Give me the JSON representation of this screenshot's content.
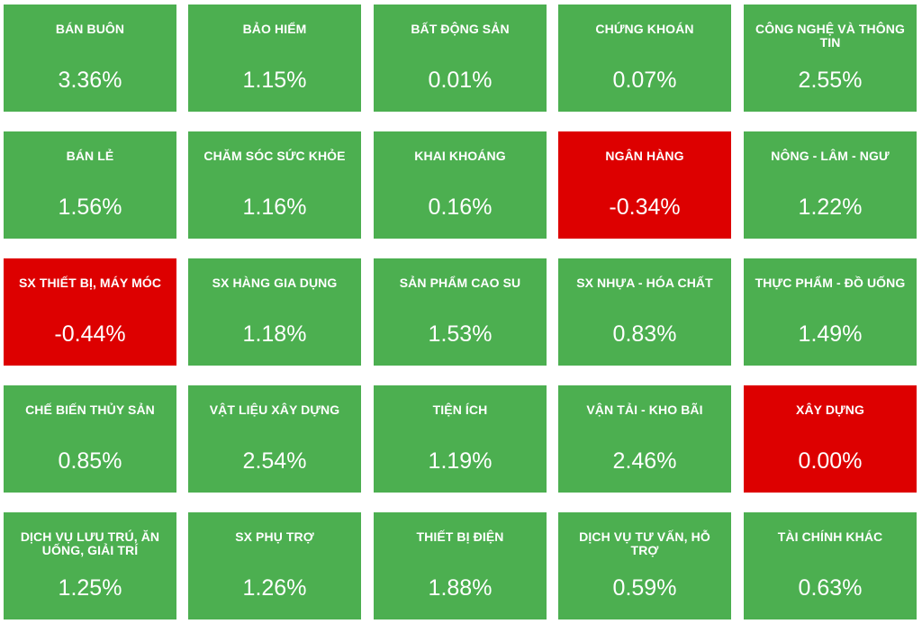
{
  "sectors": [
    {
      "name": "BÁN BUÔN",
      "change": "3.36%",
      "status": "up"
    },
    {
      "name": "BẢO HIỂM",
      "change": "1.15%",
      "status": "up"
    },
    {
      "name": "BẤT ĐỘNG SẢN",
      "change": "0.01%",
      "status": "up"
    },
    {
      "name": "CHỨNG KHOÁN",
      "change": "0.07%",
      "status": "up"
    },
    {
      "name": "CÔNG NGHỆ VÀ THÔNG TIN",
      "change": "2.55%",
      "status": "up"
    },
    {
      "name": "BÁN LẺ",
      "change": "1.56%",
      "status": "up"
    },
    {
      "name": "CHĂM SÓC SỨC KHỎE",
      "change": "1.16%",
      "status": "up"
    },
    {
      "name": "KHAI KHOÁNG",
      "change": "0.16%",
      "status": "up"
    },
    {
      "name": "NGÂN HÀNG",
      "change": "-0.34%",
      "status": "down"
    },
    {
      "name": "NÔNG - LÂM - NGƯ",
      "change": "1.22%",
      "status": "up"
    },
    {
      "name": "SX THIẾT BỊ, MÁY MÓC",
      "change": "-0.44%",
      "status": "down"
    },
    {
      "name": "SX HÀNG GIA DỤNG",
      "change": "1.18%",
      "status": "up"
    },
    {
      "name": "SẢN PHẨM CAO SU",
      "change": "1.53%",
      "status": "up"
    },
    {
      "name": "SX NHỰA - HÓA CHẤT",
      "change": "0.83%",
      "status": "up"
    },
    {
      "name": "THỰC PHẨM - ĐỒ UỐNG",
      "change": "1.49%",
      "status": "up"
    },
    {
      "name": "CHẾ BIẾN THỦY SẢN",
      "change": "0.85%",
      "status": "up"
    },
    {
      "name": "VẬT LIỆU XÂY DỰNG",
      "change": "2.54%",
      "status": "up"
    },
    {
      "name": "TIỆN ÍCH",
      "change": "1.19%",
      "status": "up"
    },
    {
      "name": "VẬN TẢI - KHO BÃI",
      "change": "2.46%",
      "status": "up"
    },
    {
      "name": "XÂY DỰNG",
      "change": "0.00%",
      "status": "down"
    },
    {
      "name": "DỊCH VỤ LƯU TRÚ, ĂN UỐNG, GIẢI TRÍ",
      "change": "1.25%",
      "status": "up"
    },
    {
      "name": "SX PHỤ TRỢ",
      "change": "1.26%",
      "status": "up"
    },
    {
      "name": "THIẾT BỊ ĐIỆN",
      "change": "1.88%",
      "status": "up"
    },
    {
      "name": "DỊCH VỤ TƯ VẤN, HỖ TRỢ",
      "change": "0.59%",
      "status": "up"
    },
    {
      "name": "TÀI CHÍNH KHÁC",
      "change": "0.63%",
      "status": "up"
    }
  ],
  "colors": {
    "up": "#4caf50",
    "down": "#dd0000",
    "text": "#ffffff"
  }
}
